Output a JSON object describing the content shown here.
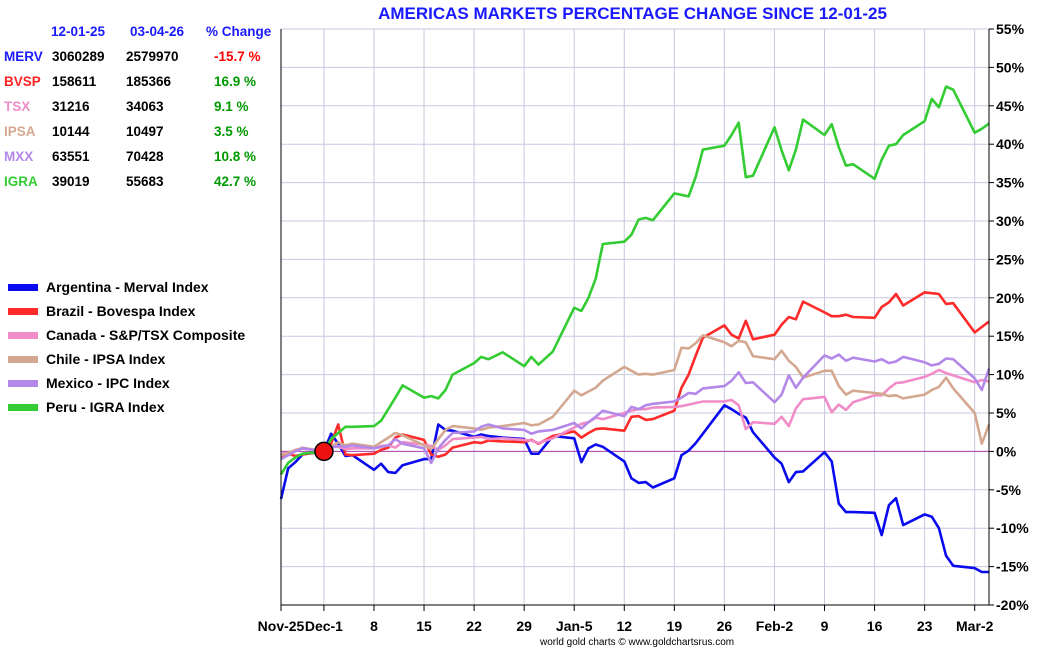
{
  "title": "AMERICAS MARKETS PERCENTAGE CHANGE SINCE 12-01-25",
  "credit": "world gold charts © www.goldchartsrus.com",
  "table": {
    "headers": [
      "12-01-25",
      "03-04-26",
      "% Change"
    ],
    "rows": [
      {
        "name": "MERV",
        "start": "3060289",
        "end": "2579970",
        "change": "-15.7 %",
        "name_color": "#1a1aff",
        "change_color": "#ff0000"
      },
      {
        "name": "BVSP",
        "start": "158611",
        "end": "185366",
        "change": "16.9 %",
        "name_color": "#ff2222",
        "change_color": "#009900"
      },
      {
        "name": "TSX",
        "start": "31216",
        "end": "34063",
        "change": "9.1 %",
        "name_color": "#f08cc8",
        "change_color": "#009900"
      },
      {
        "name": "IPSA",
        "start": "10144",
        "end": "10497",
        "change": "3.5 %",
        "name_color": "#d4a890",
        "change_color": "#009900"
      },
      {
        "name": "MXX",
        "start": "63551",
        "end": "70428",
        "change": "10.8 %",
        "name_color": "#b488e8",
        "change_color": "#009900"
      },
      {
        "name": "IGRA",
        "start": "39019",
        "end": "55683",
        "change": "42.7 %",
        "name_color": "#33cc33",
        "change_color": "#009900"
      }
    ]
  },
  "chart_data": {
    "type": "line",
    "y_unit": "percent change",
    "ylim": [
      -20,
      55
    ],
    "yticks": [
      -20,
      -15,
      -10,
      -5,
      0,
      5,
      10,
      15,
      20,
      25,
      30,
      35,
      40,
      45,
      50,
      55
    ],
    "ytick_labels": [
      "-20%",
      "-15%",
      "-10%",
      "-5%",
      "0%",
      "5%",
      "10%",
      "15%",
      "20%",
      "25%",
      "30%",
      "35%",
      "40%",
      "45%",
      "50%",
      "55%"
    ],
    "x_dates": [
      "2025-11-25",
      "2025-11-26",
      "2025-11-27",
      "2025-11-28",
      "2025-12-01",
      "2025-12-02",
      "2025-12-03",
      "2025-12-04",
      "2025-12-05",
      "2025-12-08",
      "2025-12-09",
      "2025-12-10",
      "2025-12-11",
      "2025-12-12",
      "2025-12-15",
      "2025-12-16",
      "2025-12-17",
      "2025-12-18",
      "2025-12-19",
      "2025-12-22",
      "2025-12-23",
      "2025-12-24",
      "2025-12-26",
      "2025-12-29",
      "2025-12-30",
      "2025-12-31",
      "2026-01-02",
      "2026-01-05",
      "2026-01-06",
      "2026-01-07",
      "2026-01-08",
      "2026-01-09",
      "2026-01-12",
      "2026-01-13",
      "2026-01-14",
      "2026-01-15",
      "2026-01-16",
      "2026-01-19",
      "2026-01-20",
      "2026-01-21",
      "2026-01-22",
      "2026-01-23",
      "2026-01-26",
      "2026-01-27",
      "2026-01-28",
      "2026-01-29",
      "2026-01-30",
      "2026-02-02",
      "2026-02-03",
      "2026-02-04",
      "2026-02-05",
      "2026-02-06",
      "2026-02-09",
      "2026-02-10",
      "2026-02-11",
      "2026-02-12",
      "2026-02-13",
      "2026-02-16",
      "2026-02-17",
      "2026-02-18",
      "2026-02-19",
      "2026-02-20",
      "2026-02-23",
      "2026-02-24",
      "2026-02-25",
      "2026-02-26",
      "2026-02-27",
      "2026-03-02",
      "2026-03-03",
      "2026-03-04"
    ],
    "x_range": [
      "2025-11-25",
      "2026-03-04"
    ],
    "xticks": [
      {
        "date": "2025-11-25",
        "label": "Nov-25"
      },
      {
        "date": "2025-12-01",
        "label": "Dec-1"
      },
      {
        "date": "2025-12-08",
        "label": "8"
      },
      {
        "date": "2025-12-15",
        "label": "15"
      },
      {
        "date": "2025-12-22",
        "label": "22"
      },
      {
        "date": "2025-12-29",
        "label": "29"
      },
      {
        "date": "2026-01-05",
        "label": "Jan-5"
      },
      {
        "date": "2026-01-12",
        "label": "12"
      },
      {
        "date": "2026-01-19",
        "label": "19"
      },
      {
        "date": "2026-01-26",
        "label": "26"
      },
      {
        "date": "2026-02-02",
        "label": "Feb-2"
      },
      {
        "date": "2026-02-09",
        "label": "9"
      },
      {
        "date": "2026-02-16",
        "label": "16"
      },
      {
        "date": "2026-02-23",
        "label": "23"
      },
      {
        "date": "2026-03-02",
        "label": "Mar-2"
      }
    ],
    "grid": true,
    "legend_placement": "left",
    "baseline_marker": {
      "date": "2025-12-01",
      "value": 0
    },
    "series": [
      {
        "name": "Argentina - Merval Index",
        "color": "#0a0aee",
        "values": [
          -6.2,
          -2.2,
          -1.4,
          -0.4,
          0.0,
          2.3,
          1.0,
          -0.6,
          -0.5,
          -2.4,
          -1.6,
          -2.7,
          -2.8,
          -1.8,
          -1.0,
          -1.0,
          3.5,
          2.8,
          2.7,
          1.9,
          2.2,
          2.0,
          1.8,
          1.6,
          -0.3,
          -0.3,
          2.0,
          1.7,
          -1.4,
          0.4,
          0.9,
          0.6,
          -1.3,
          -3.5,
          -4.1,
          -4.0,
          -4.7,
          -3.5,
          -0.5,
          0.1,
          1.1,
          2.3,
          6.0,
          5.5,
          4.9,
          4.4,
          2.5,
          -0.8,
          -1.6,
          -4.0,
          -2.7,
          -2.6,
          -0.1,
          -1.3,
          -6.8,
          -7.9,
          -7.9,
          -8.0,
          -10.9,
          -7.0,
          -6.1,
          -9.6,
          -8.2,
          -8.5,
          -10.0,
          -13.6,
          -14.9,
          -15.2,
          -15.7,
          -15.7
        ]
      },
      {
        "name": "Brazil - Bovespa Index",
        "color": "#ff2a2a",
        "values": [
          -0.6,
          -0.3,
          -0.6,
          -0.4,
          0.0,
          1.0,
          3.5,
          -0.4,
          -0.5,
          -0.3,
          0.2,
          0.5,
          1.8,
          2.2,
          1.5,
          -0.4,
          -0.7,
          -0.4,
          0.5,
          1.2,
          1.1,
          1.4,
          1.3,
          1.2,
          1.5,
          1.0,
          2.0,
          2.6,
          1.8,
          2.4,
          2.9,
          3.0,
          2.7,
          4.5,
          4.6,
          4.1,
          4.2,
          5.3,
          8.3,
          10.0,
          12.5,
          14.8,
          16.4,
          15.2,
          14.7,
          17.0,
          14.6,
          15.2,
          16.5,
          17.5,
          17.2,
          19.5,
          18.1,
          17.6,
          17.6,
          17.8,
          17.5,
          17.4,
          18.8,
          19.4,
          20.5,
          19.0,
          20.7,
          20.6,
          20.5,
          19.2,
          19.3,
          15.5,
          16.2,
          16.9
        ]
      },
      {
        "name": "Canada - S&P/TSX Composite",
        "color": "#f08cc8",
        "values": [
          -0.3,
          -0.2,
          0.2,
          0.4,
          0.0,
          0.6,
          0.6,
          0.3,
          0.4,
          0.4,
          0.7,
          0.8,
          0.5,
          1.2,
          0.9,
          0.7,
          0.2,
          0.8,
          1.6,
          1.8,
          1.9,
          1.6,
          1.7,
          1.5,
          1.4,
          1.1,
          1.7,
          3.1,
          3.6,
          3.8,
          4.4,
          4.2,
          5.0,
          5.3,
          5.5,
          5.5,
          5.7,
          5.8,
          5.9,
          6.1,
          6.3,
          6.5,
          6.5,
          6.7,
          6.0,
          2.9,
          3.8,
          3.6,
          4.5,
          3.3,
          5.6,
          6.8,
          7.1,
          5.1,
          6.1,
          5.4,
          6.4,
          7.3,
          7.3,
          8.2,
          8.9,
          9.0,
          9.7,
          10.1,
          10.6,
          10.2,
          9.9,
          9.0,
          9.3,
          9.1
        ]
      },
      {
        "name": "Chile - IPSA Index",
        "color": "#d4a890",
        "values": [
          -0.5,
          -0.2,
          0.1,
          0.5,
          0.0,
          0.6,
          1.2,
          0.8,
          1.0,
          0.6,
          1.2,
          1.8,
          2.4,
          2.1,
          0.8,
          0.3,
          1.6,
          2.8,
          3.3,
          3.0,
          2.8,
          3.1,
          3.3,
          3.7,
          3.4,
          3.5,
          4.5,
          7.9,
          7.3,
          7.8,
          8.3,
          9.2,
          11.0,
          10.5,
          10.0,
          10.1,
          10.0,
          10.6,
          13.5,
          13.4,
          14.1,
          15.1,
          14.2,
          13.7,
          14.4,
          14.2,
          12.4,
          12.0,
          13.1,
          11.8,
          11.0,
          9.6,
          10.5,
          10.5,
          8.5,
          7.4,
          7.9,
          7.6,
          7.5,
          7.2,
          7.3,
          6.9,
          7.4,
          8.0,
          8.4,
          9.6,
          8.2,
          5.0,
          1.0,
          3.5
        ]
      },
      {
        "name": "Mexico - IPC Index",
        "color": "#b488e8",
        "values": [
          -1.0,
          -0.5,
          0.0,
          0.4,
          0.0,
          0.5,
          0.7,
          0.6,
          0.8,
          0.4,
          0.6,
          0.8,
          1.6,
          1.0,
          0.4,
          -1.5,
          0.4,
          1.5,
          2.4,
          2.6,
          3.2,
          3.5,
          3.0,
          2.8,
          2.3,
          2.6,
          2.8,
          3.7,
          3.0,
          3.8,
          4.5,
          5.3,
          4.6,
          5.8,
          5.5,
          6.0,
          6.2,
          6.5,
          7.0,
          7.6,
          7.5,
          8.2,
          8.5,
          9.2,
          10.3,
          8.9,
          9.0,
          6.4,
          7.4,
          9.9,
          8.3,
          9.6,
          12.5,
          12.1,
          12.6,
          11.8,
          12.2,
          11.7,
          12.0,
          11.5,
          11.7,
          12.3,
          11.6,
          11.2,
          11.4,
          12.1,
          12.0,
          9.5,
          8.0,
          10.8
        ]
      },
      {
        "name": "Peru - IGRA Index",
        "color": "#33cc33",
        "values": [
          -3.0,
          -1.5,
          -0.8,
          -0.3,
          0.0,
          1.6,
          2.4,
          3.2,
          3.2,
          3.3,
          4.0,
          5.5,
          7.0,
          8.6,
          7.0,
          7.2,
          6.9,
          8.0,
          10.0,
          11.5,
          12.3,
          12.0,
          12.9,
          11.1,
          12.3,
          11.3,
          13.0,
          18.7,
          18.3,
          20.0,
          22.5,
          27.0,
          27.3,
          28.2,
          30.2,
          30.4,
          30.1,
          33.6,
          33.4,
          33.2,
          35.8,
          39.3,
          39.8,
          41.2,
          42.8,
          35.7,
          35.9,
          42.2,
          39.2,
          36.6,
          39.3,
          43.2,
          41.2,
          42.6,
          39.6,
          37.2,
          37.4,
          35.5,
          38.0,
          39.8,
          40.0,
          41.2,
          43.0,
          45.9,
          44.8,
          47.5,
          47.1,
          41.5,
          42.0,
          42.7
        ]
      }
    ]
  }
}
